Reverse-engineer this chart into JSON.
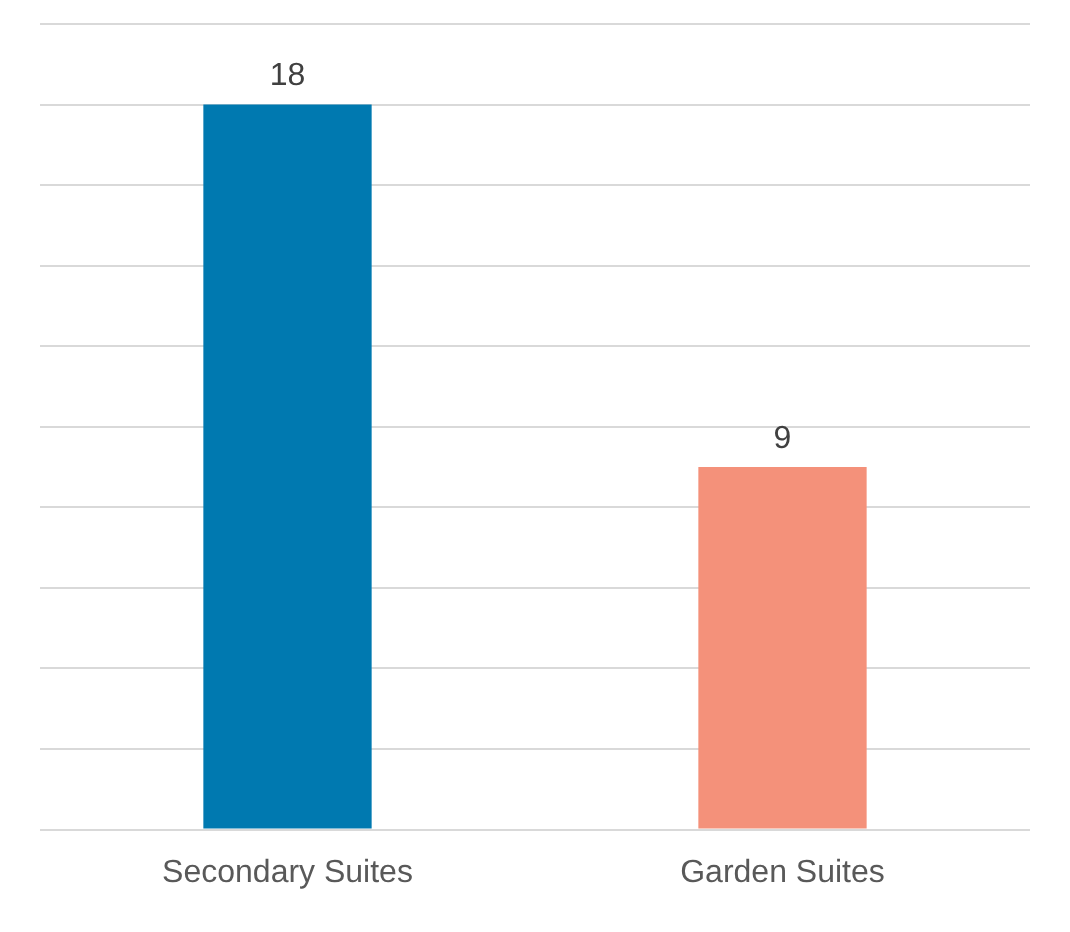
{
  "chart_data": {
    "type": "bar",
    "categories": [
      "Secondary Suites",
      "Garden Suites"
    ],
    "values": [
      18,
      9
    ],
    "colors": [
      "#0079b0",
      "#f4917a"
    ],
    "ylim": [
      0,
      20
    ],
    "yticks": [
      {
        "value": 0,
        "label": null
      },
      {
        "value": 2,
        "label": null
      },
      {
        "value": 4,
        "label": null
      },
      {
        "value": 6,
        "label": null
      },
      {
        "value": 8,
        "label": null
      },
      {
        "value": 10,
        "label": null
      },
      {
        "value": 12,
        "label": null
      },
      {
        "value": 14,
        "label": null
      },
      {
        "value": 16,
        "label": null
      },
      {
        "value": 18,
        "label": null
      },
      {
        "value": 20,
        "label": null
      }
    ],
    "grid": "y",
    "tick_labels": "x",
    "data_labels": true
  }
}
